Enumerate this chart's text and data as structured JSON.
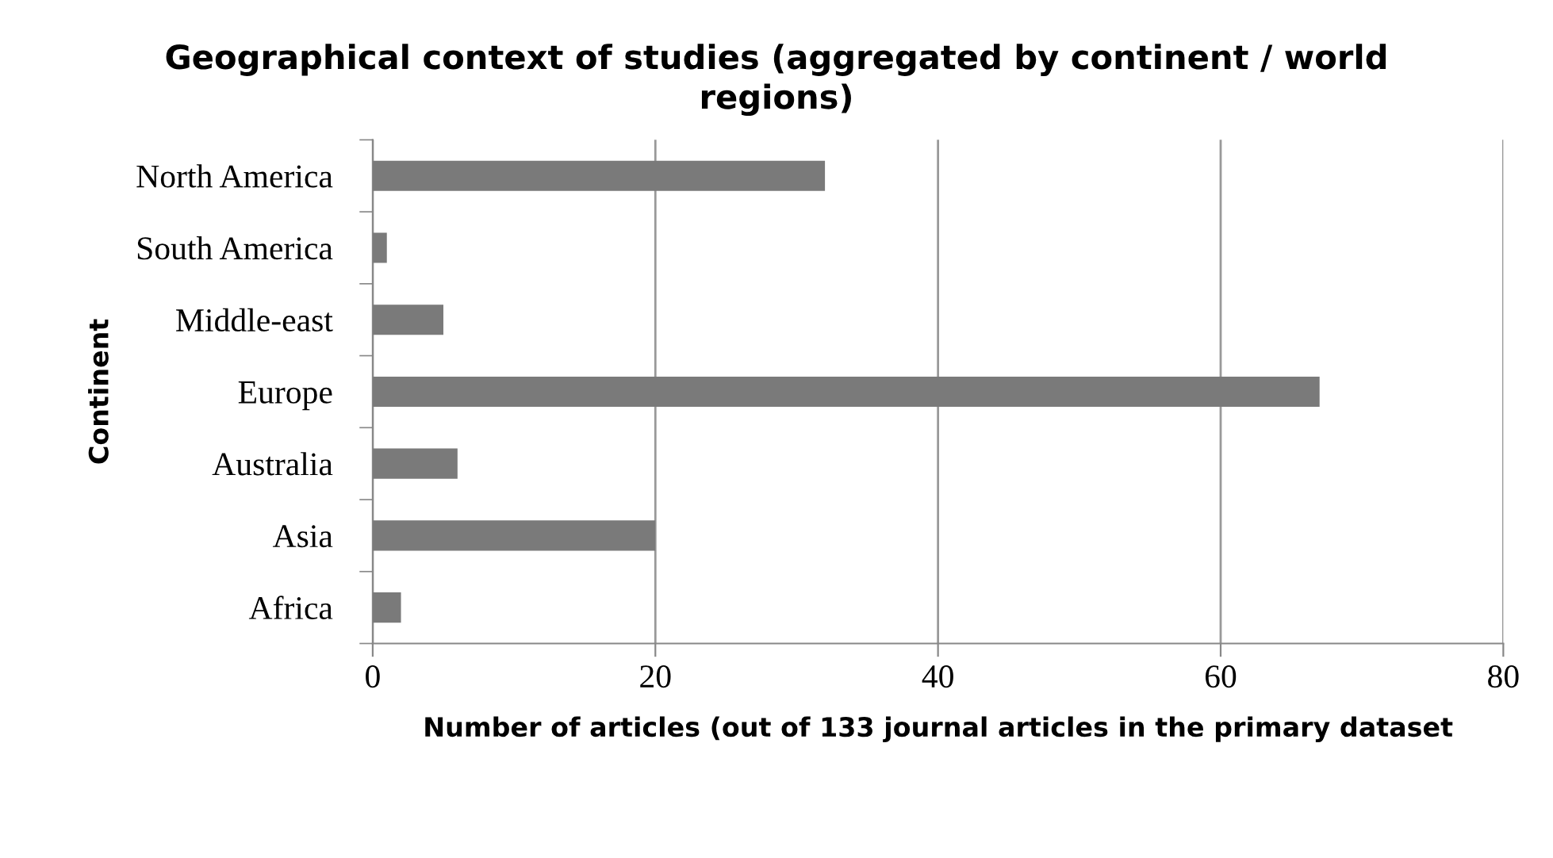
{
  "chart_data": {
    "type": "bar",
    "orientation": "horizontal",
    "title": "Geographical context of studies (aggregated by continent / world regions)",
    "xlabel": "Number of articles (out of 133 journal articles in the primary dataset",
    "ylabel": "Continent",
    "categories": [
      "North America",
      "South America",
      "Middle-east",
      "Europe",
      "Australia",
      "Asia",
      "Africa"
    ],
    "values": [
      32,
      1,
      5,
      67,
      6,
      20,
      2
    ],
    "color": "#7a7a7a",
    "xlim": [
      0,
      80
    ],
    "xticks": [
      0,
      20,
      40,
      60,
      80
    ],
    "grid": "x",
    "legend": false
  }
}
